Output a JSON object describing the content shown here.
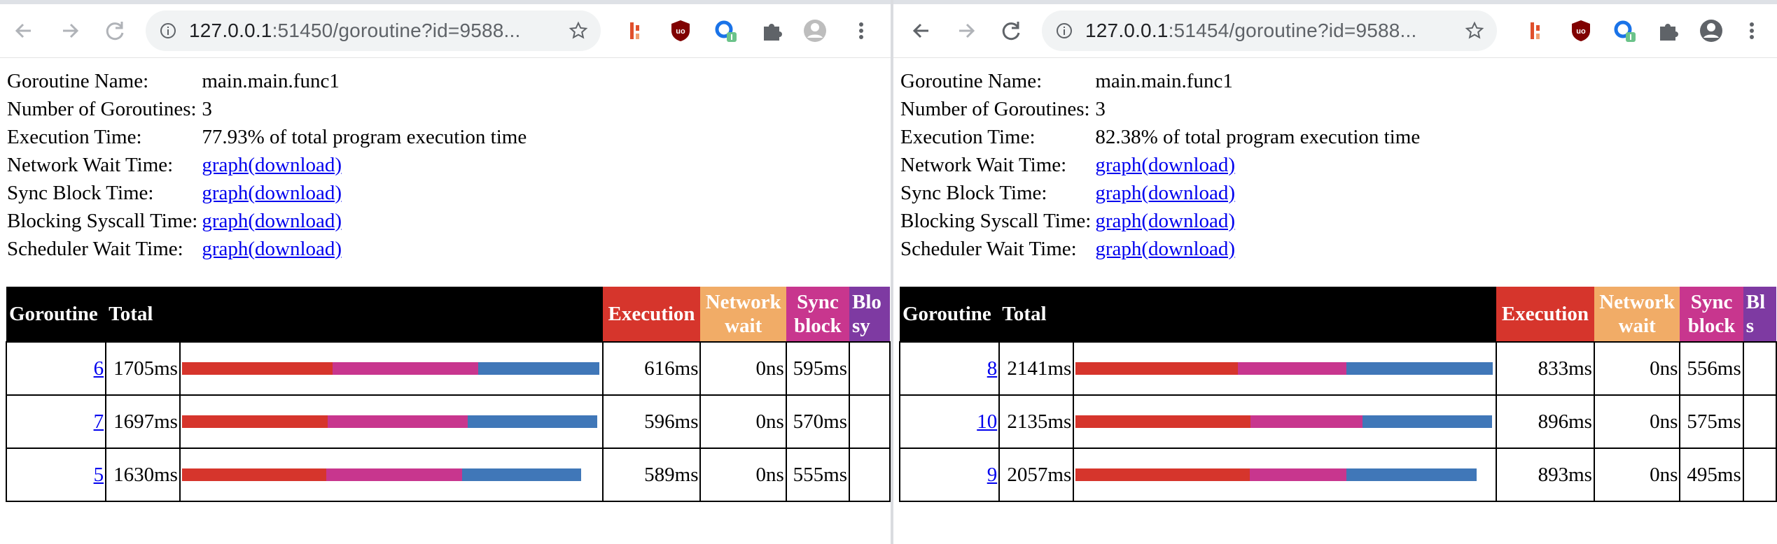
{
  "colors": {
    "execution": "#d6352c",
    "network_wait": "#f1ac67",
    "sync_block": "#c8368e",
    "blocking_syscall": "#7e3aa2",
    "scheduler_wait": "#4077b8",
    "link": "#0000ee"
  },
  "windows": [
    {
      "browser": {
        "url_host": "127.0.0.1",
        "url_rest": ":51450/goroutine?id=9588...",
        "icons": [
          "back-arrow-icon",
          "forward-arrow-icon",
          "reload-icon",
          "info-icon",
          "star-icon",
          "extension-icon",
          "ublock-icon",
          "extension-badge-icon",
          "puzzle-icon",
          "profile-icon",
          "kebab-menu-icon"
        ]
      },
      "info": {
        "goroutine_name_label": "Goroutine Name:",
        "goroutine_name": "main.main.func1",
        "num_goroutines_label": "Number of Goroutines:",
        "num_goroutines": "3",
        "exec_time_label": "Execution Time:",
        "exec_time": "77.93% of total program execution time",
        "network_wait_label": "Network Wait Time:",
        "sync_block_label": "Sync Block Time:",
        "blocking_syscall_label": "Blocking Syscall Time:",
        "scheduler_wait_label": "Scheduler Wait Time:",
        "graph_link": "graph(download)"
      },
      "table": {
        "headers": {
          "goroutine": "Goroutine",
          "total": "Total",
          "execution": "Execution",
          "network_1": "Network",
          "network_2": "wait",
          "sync_1": "Sync",
          "sync_2": "block",
          "block_1": "Blo",
          "block_2": "sy"
        },
        "rows": [
          {
            "id": "6",
            "total": "1705ms",
            "execution": "616ms",
            "network": "0ns",
            "sync": "595ms",
            "bar": {
              "total_ms": 1705,
              "execution_ms": 616,
              "sync_ms": 595
            }
          },
          {
            "id": "7",
            "total": "1697ms",
            "execution": "596ms",
            "network": "0ns",
            "sync": "570ms",
            "bar": {
              "total_ms": 1697,
              "execution_ms": 596,
              "sync_ms": 570
            }
          },
          {
            "id": "5",
            "total": "1630ms",
            "execution": "589ms",
            "network": "0ns",
            "sync": "555ms",
            "bar": {
              "total_ms": 1630,
              "execution_ms": 589,
              "sync_ms": 555
            }
          }
        ]
      }
    },
    {
      "browser": {
        "url_host": "127.0.0.1",
        "url_rest": ":51454/goroutine?id=9588...",
        "icons": [
          "back-arrow-icon",
          "forward-arrow-icon",
          "reload-icon",
          "info-icon",
          "star-icon",
          "extension-icon",
          "ublock-icon",
          "extension-badge-icon",
          "puzzle-icon",
          "profile-icon",
          "kebab-menu-icon"
        ]
      },
      "info": {
        "goroutine_name_label": "Goroutine Name:",
        "goroutine_name": "main.main.func1",
        "num_goroutines_label": "Number of Goroutines:",
        "num_goroutines": "3",
        "exec_time_label": "Execution Time:",
        "exec_time": "82.38% of total program execution time",
        "network_wait_label": "Network Wait Time:",
        "sync_block_label": "Sync Block Time:",
        "blocking_syscall_label": "Blocking Syscall Time:",
        "scheduler_wait_label": "Scheduler Wait Time:",
        "graph_link": "graph(download)"
      },
      "table": {
        "headers": {
          "goroutine": "Goroutine",
          "total": "Total",
          "execution": "Execution",
          "network_1": "Network",
          "network_2": "wait",
          "sync_1": "Sync",
          "sync_2": "block",
          "block_1": "Bl",
          "block_2": "s"
        },
        "rows": [
          {
            "id": "8",
            "total": "2141ms",
            "execution": "833ms",
            "network": "0ns",
            "sync": "556ms",
            "bar": {
              "total_ms": 2141,
              "execution_ms": 833,
              "sync_ms": 556
            }
          },
          {
            "id": "10",
            "total": "2135ms",
            "execution": "896ms",
            "network": "0ns",
            "sync": "575ms",
            "bar": {
              "total_ms": 2135,
              "execution_ms": 896,
              "sync_ms": 575
            }
          },
          {
            "id": "9",
            "total": "2057ms",
            "execution": "893ms",
            "network": "0ns",
            "sync": "495ms",
            "bar": {
              "total_ms": 2057,
              "execution_ms": 893,
              "sync_ms": 495
            }
          }
        ]
      }
    }
  ]
}
